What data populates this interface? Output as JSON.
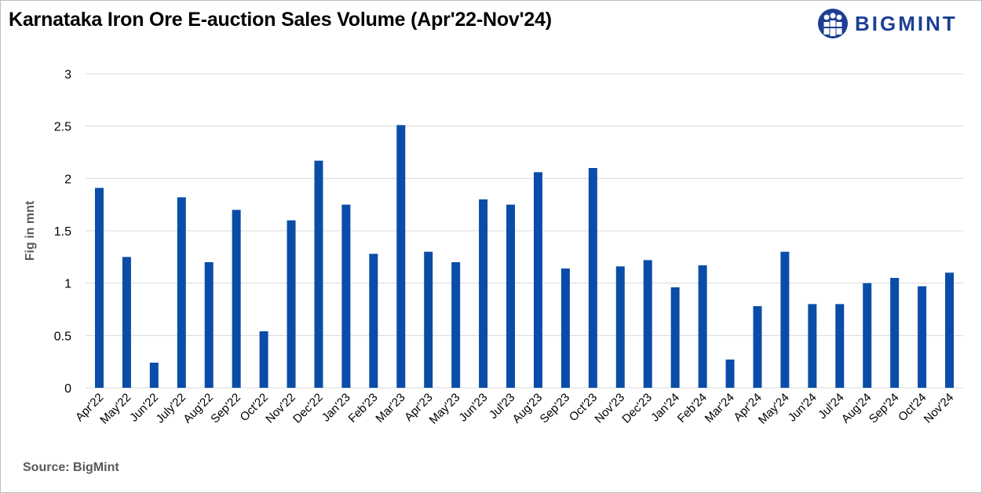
{
  "header": {
    "title": "Karnataka Iron Ore E-auction Sales Volume (Apr'22-Nov'24)",
    "logo_text": "BIGMINT",
    "logo_icon": "bigmint-people-icon"
  },
  "footer": {
    "source": "Source: BigMint"
  },
  "colors": {
    "bar": "#0a4da8",
    "grid": "#d9d9d9",
    "brand": "#1c3f94"
  },
  "chart_data": {
    "type": "bar",
    "title": "Karnataka Iron Ore E-auction Sales Volume (Apr'22-Nov'24)",
    "xlabel": "",
    "ylabel": "Fig in mnt",
    "ylim": [
      0,
      3
    ],
    "yticks": [
      "0",
      "0.5",
      "1",
      "1.5",
      "2",
      "2.5",
      "3"
    ],
    "grid": true,
    "legend": "none",
    "categories": [
      "Apr'22",
      "May'22",
      "Jun'22",
      "July'22",
      "Aug'22",
      "Sep'22",
      "Oct'22",
      "Nov'22",
      "Dec'22",
      "Jan'23",
      "Feb'23",
      "Mar'23",
      "Apr'23",
      "May'23",
      "Jun'23",
      "Jul'23",
      "Aug'23",
      "Sep'23",
      "Oct'23",
      "Nov'23",
      "Dec'23",
      "Jan'24",
      "Feb'24",
      "Mar'24",
      "Apr'24",
      "May'24",
      "Jun'24",
      "Jul'24",
      "Aug'24",
      "Sep'24",
      "Oct'24",
      "Nov'24"
    ],
    "values": [
      1.91,
      1.25,
      0.24,
      1.82,
      1.2,
      1.7,
      0.54,
      1.6,
      2.17,
      1.75,
      1.28,
      2.51,
      1.3,
      1.2,
      1.8,
      1.75,
      2.06,
      1.14,
      2.1,
      1.16,
      1.22,
      0.96,
      1.17,
      0.27,
      0.78,
      1.3,
      0.8,
      0.8,
      1.0,
      1.05,
      0.97,
      1.1
    ]
  }
}
